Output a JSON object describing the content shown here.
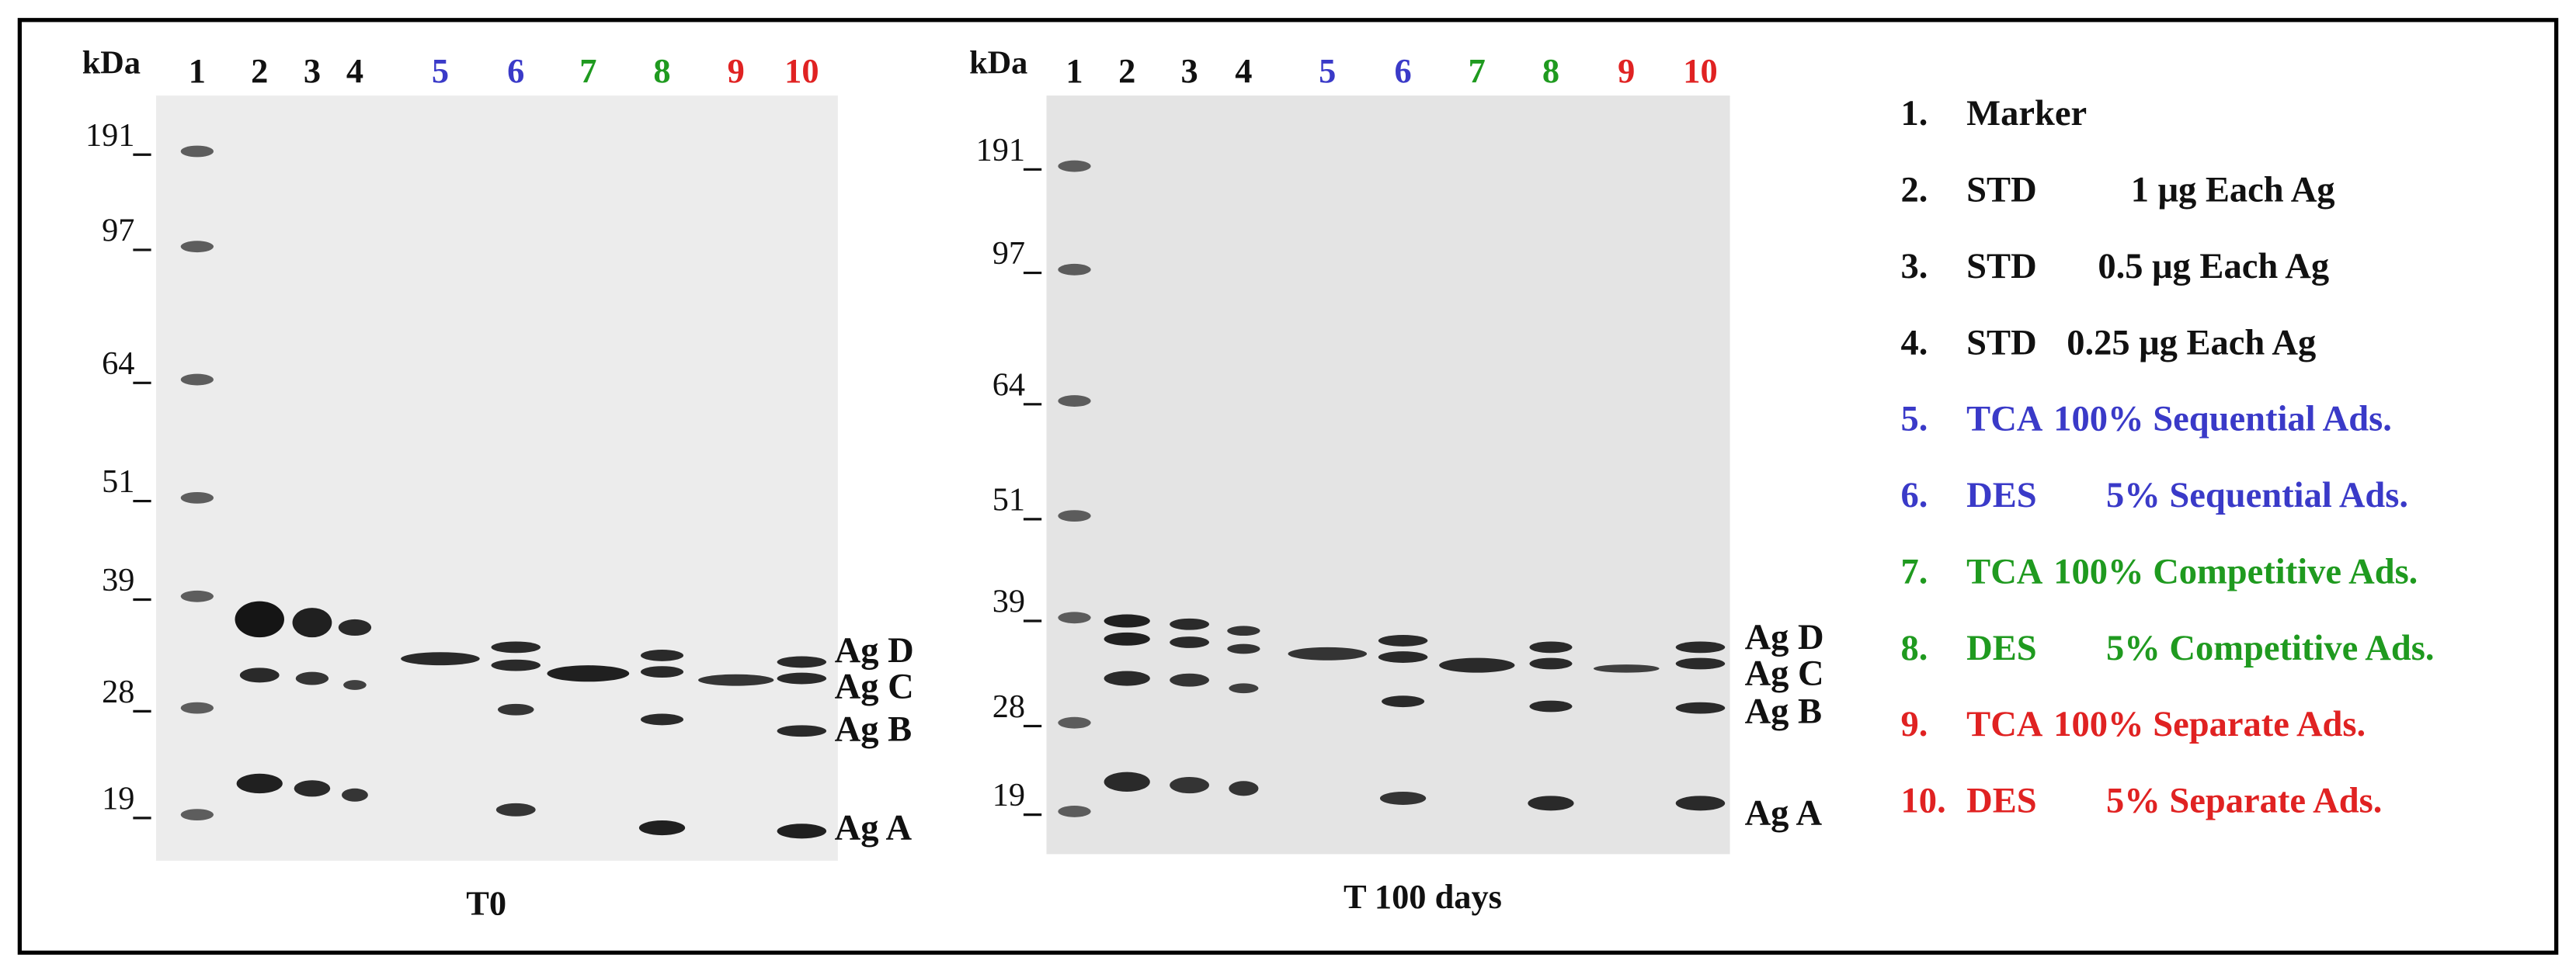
{
  "panels": [
    {
      "title": "T0",
      "unit": "kDa",
      "lanes": [
        "1",
        "2",
        "3",
        "4",
        "5",
        "6",
        "7",
        "8",
        "9",
        "10"
      ],
      "markers": [
        "191",
        "97",
        "64",
        "51",
        "39",
        "28",
        "19"
      ],
      "band_labels": [
        "Ag D",
        "Ag C",
        "Ag B",
        "Ag A"
      ]
    },
    {
      "title": "T 100 days",
      "unit": "kDa",
      "lanes": [
        "1",
        "2",
        "3",
        "4",
        "5",
        "6",
        "7",
        "8",
        "9",
        "10"
      ],
      "markers": [
        "191",
        "97",
        "64",
        "51",
        "39",
        "28",
        "19"
      ],
      "band_labels": [
        "Ag D",
        "Ag C",
        "Ag B",
        "Ag A"
      ]
    }
  ],
  "legend": [
    {
      "number": "1.",
      "name": "Marker"
    },
    {
      "number": "2.",
      "name": "STD",
      "detail": "1 μg Each Ag"
    },
    {
      "number": "3.",
      "name": "STD",
      "detail": "0.5 μg Each Ag"
    },
    {
      "number": "4.",
      "name": "STD",
      "detail": "0.25 μg Each Ag"
    },
    {
      "number": "5.",
      "name": "TCA",
      "detail": "100% Sequential Ads."
    },
    {
      "number": "6.",
      "name": "DES",
      "detail": "5% Sequential Ads."
    },
    {
      "number": "7.",
      "name": "TCA",
      "detail": "100% Competitive Ads."
    },
    {
      "number": "8.",
      "name": "DES",
      "detail": "5% Competitive Ads."
    },
    {
      "number": "9.",
      "name": "TCA",
      "detail": "100% Separate Ads."
    },
    {
      "number": "10.",
      "name": "DES",
      "detail": "5% Separate Ads."
    }
  ]
}
